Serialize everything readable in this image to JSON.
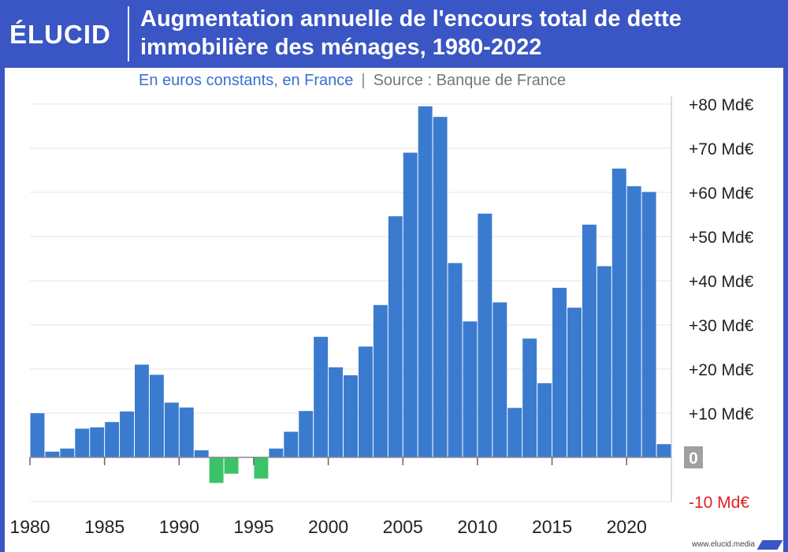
{
  "header": {
    "logo": "ÉLUCID",
    "title_line1": "Augmentation annuelle de l'encours total de dette",
    "title_line2": "immobilière des ménages, 1980-2022"
  },
  "subtitle": {
    "main": "En euros constants, en France",
    "separator": "|",
    "source": "Source : Banque de France"
  },
  "footer": {
    "url": "www.elucid.media"
  },
  "colors": {
    "brand": "#3a56c4",
    "positive_bar": "#3a7bd0",
    "negative_bar": "#3cc36a",
    "negative_label": "#e02020",
    "zero_badge": "#a0a0a0"
  },
  "chart_data": {
    "type": "bar",
    "x": [
      1980,
      1981,
      1982,
      1983,
      1984,
      1985,
      1986,
      1987,
      1988,
      1989,
      1990,
      1991,
      1992,
      1993,
      1994,
      1995,
      1996,
      1997,
      1998,
      1999,
      2000,
      2001,
      2002,
      2003,
      2004,
      2005,
      2006,
      2007,
      2008,
      2009,
      2010,
      2011,
      2012,
      2013,
      2014,
      2015,
      2016,
      2017,
      2018,
      2019,
      2020,
      2021,
      2022
    ],
    "values": [
      10.0,
      1.3,
      2.0,
      6.5,
      6.8,
      8.0,
      10.4,
      21.0,
      18.7,
      12.4,
      11.3,
      1.6,
      -5.8,
      -3.7,
      0,
      -4.8,
      2.0,
      5.8,
      10.5,
      27.3,
      20.4,
      18.6,
      25.1,
      34.5,
      54.6,
      69.0,
      79.5,
      77.1,
      44.0,
      30.8,
      55.2,
      35.1,
      11.2,
      26.9,
      16.8,
      38.4,
      33.9,
      52.7,
      43.3,
      65.4,
      61.4,
      60.1,
      3.0
    ],
    "tick_labels": [
      "1980",
      "1985",
      "1990",
      "1995",
      "2000",
      "2005",
      "2010",
      "2015",
      "2020"
    ],
    "tick_years": [
      1980,
      1985,
      1990,
      1995,
      2000,
      2005,
      2010,
      2015,
      2020
    ],
    "y_ticks": [
      {
        "value": 80,
        "label": "+80 Md€"
      },
      {
        "value": 70,
        "label": "+70 Md€"
      },
      {
        "value": 60,
        "label": "+60 Md€"
      },
      {
        "value": 50,
        "label": "+50 Md€"
      },
      {
        "value": 40,
        "label": "+40 Md€"
      },
      {
        "value": 30,
        "label": "+30 Md€"
      },
      {
        "value": 20,
        "label": "+20 Md€"
      },
      {
        "value": 10,
        "label": "+10 Md€"
      },
      {
        "value": 0,
        "label": "0"
      },
      {
        "value": -10,
        "label": "-10 Md€"
      }
    ],
    "ylim": [
      -10,
      80
    ],
    "grid": true,
    "y_axis_side": "right"
  }
}
